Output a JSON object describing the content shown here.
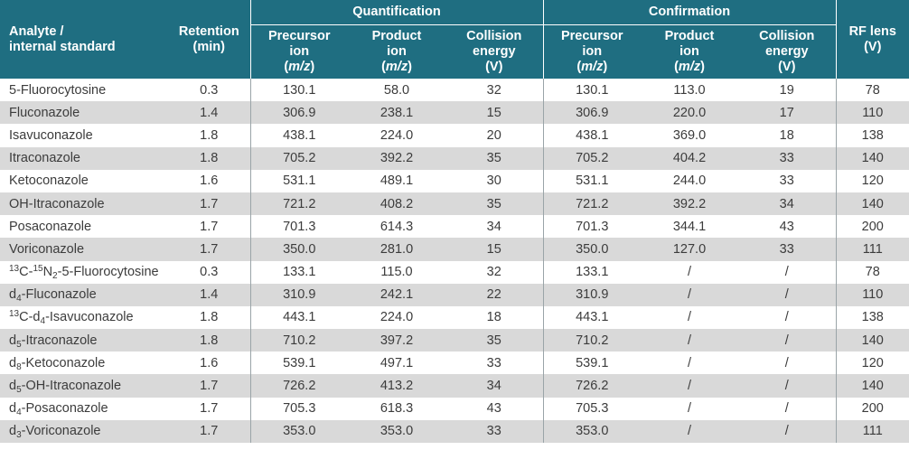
{
  "headers": {
    "analyte_line1": "Analyte /",
    "analyte_line2": "internal standard",
    "retention_line1": "Retention",
    "retention_line2": "(min)",
    "quantification": "Quantification",
    "confirmation": "Confirmation",
    "precursor_line1": "Precursor",
    "precursor_line2": "ion",
    "product_line1": "Product",
    "product_line2": "ion",
    "mz": "m/z",
    "collision_line1": "Collision",
    "collision_line2": "energy",
    "collision_unit": "(V)",
    "rf_line1": "RF lens",
    "rf_line2": "(V)"
  },
  "rows": [
    {
      "name": [
        {
          "t": "5-Fluorocytosine"
        }
      ],
      "rt": "0.3",
      "qp": "130.1",
      "qpr": "58.0",
      "qce": "32",
      "cp": "130.1",
      "cpr": "113.0",
      "cce": "19",
      "rf": "78"
    },
    {
      "name": [
        {
          "t": "Fluconazole"
        }
      ],
      "rt": "1.4",
      "qp": "306.9",
      "qpr": "238.1",
      "qce": "15",
      "cp": "306.9",
      "cpr": "220.0",
      "cce": "17",
      "rf": "110"
    },
    {
      "name": [
        {
          "t": "Isavuconazole"
        }
      ],
      "rt": "1.8",
      "qp": "438.1",
      "qpr": "224.0",
      "qce": "20",
      "cp": "438.1",
      "cpr": "369.0",
      "cce": "18",
      "rf": "138"
    },
    {
      "name": [
        {
          "t": "Itraconazole"
        }
      ],
      "rt": "1.8",
      "qp": "705.2",
      "qpr": "392.2",
      "qce": "35",
      "cp": "705.2",
      "cpr": "404.2",
      "cce": "33",
      "rf": "140"
    },
    {
      "name": [
        {
          "t": "Ketoconazole"
        }
      ],
      "rt": "1.6",
      "qp": "531.1",
      "qpr": "489.1",
      "qce": "30",
      "cp": "531.1",
      "cpr": "244.0",
      "cce": "33",
      "rf": "120"
    },
    {
      "name": [
        {
          "t": "OH-Itraconazole"
        }
      ],
      "rt": "1.7",
      "qp": "721.2",
      "qpr": "408.2",
      "qce": "35",
      "cp": "721.2",
      "cpr": "392.2",
      "cce": "34",
      "rf": "140"
    },
    {
      "name": [
        {
          "t": "Posaconazole"
        }
      ],
      "rt": "1.7",
      "qp": "701.3",
      "qpr": "614.3",
      "qce": "34",
      "cp": "701.3",
      "cpr": "344.1",
      "cce": "43",
      "rf": "200"
    },
    {
      "name": [
        {
          "t": "Voriconazole"
        }
      ],
      "rt": "1.7",
      "qp": "350.0",
      "qpr": "281.0",
      "qce": "15",
      "cp": "350.0",
      "cpr": "127.0",
      "cce": "33",
      "rf": "111"
    },
    {
      "name": [
        {
          "t": "13",
          "s": "sup"
        },
        {
          "t": "C-"
        },
        {
          "t": "15",
          "s": "sup"
        },
        {
          "t": "N"
        },
        {
          "t": "2",
          "s": "sub"
        },
        {
          "t": "-5-Fluorocytosine"
        }
      ],
      "rt": "0.3",
      "qp": "133.1",
      "qpr": "115.0",
      "qce": "32",
      "cp": "133.1",
      "cpr": "/",
      "cce": "/",
      "rf": "78"
    },
    {
      "name": [
        {
          "t": "d"
        },
        {
          "t": "4",
          "s": "sub"
        },
        {
          "t": "-Fluconazole"
        }
      ],
      "rt": "1.4",
      "qp": "310.9",
      "qpr": "242.1",
      "qce": "22",
      "cp": "310.9",
      "cpr": "/",
      "cce": "/",
      "rf": "110"
    },
    {
      "name": [
        {
          "t": "13",
          "s": "sup"
        },
        {
          "t": "C-d"
        },
        {
          "t": "4",
          "s": "sub"
        },
        {
          "t": "-Isavuconazole"
        }
      ],
      "rt": "1.8",
      "qp": "443.1",
      "qpr": "224.0",
      "qce": "18",
      "cp": "443.1",
      "cpr": "/",
      "cce": "/",
      "rf": "138"
    },
    {
      "name": [
        {
          "t": "d"
        },
        {
          "t": "5",
          "s": "sub"
        },
        {
          "t": "-Itraconazole"
        }
      ],
      "rt": "1.8",
      "qp": "710.2",
      "qpr": "397.2",
      "qce": "35",
      "cp": "710.2",
      "cpr": "/",
      "cce": "/",
      "rf": "140"
    },
    {
      "name": [
        {
          "t": "d"
        },
        {
          "t": "8",
          "s": "sub"
        },
        {
          "t": "-Ketoconazole"
        }
      ],
      "rt": "1.6",
      "qp": "539.1",
      "qpr": "497.1",
      "qce": "33",
      "cp": "539.1",
      "cpr": "/",
      "cce": "/",
      "rf": "120"
    },
    {
      "name": [
        {
          "t": "d"
        },
        {
          "t": "5",
          "s": "sub"
        },
        {
          "t": "-OH-Itraconazole"
        }
      ],
      "rt": "1.7",
      "qp": "726.2",
      "qpr": "413.2",
      "qce": "34",
      "cp": "726.2",
      "cpr": "/",
      "cce": "/",
      "rf": "140"
    },
    {
      "name": [
        {
          "t": "d"
        },
        {
          "t": "4",
          "s": "sub"
        },
        {
          "t": "-Posaconazole"
        }
      ],
      "rt": "1.7",
      "qp": "705.3",
      "qpr": "618.3",
      "qce": "43",
      "cp": "705.3",
      "cpr": "/",
      "cce": "/",
      "rf": "200"
    },
    {
      "name": [
        {
          "t": "d"
        },
        {
          "t": "3",
          "s": "sub"
        },
        {
          "t": "-Voriconazole"
        }
      ],
      "rt": "1.7",
      "qp": "353.0",
      "qpr": "353.0",
      "qce": "33",
      "cp": "353.0",
      "cpr": "/",
      "cce": "/",
      "rf": "111"
    }
  ]
}
